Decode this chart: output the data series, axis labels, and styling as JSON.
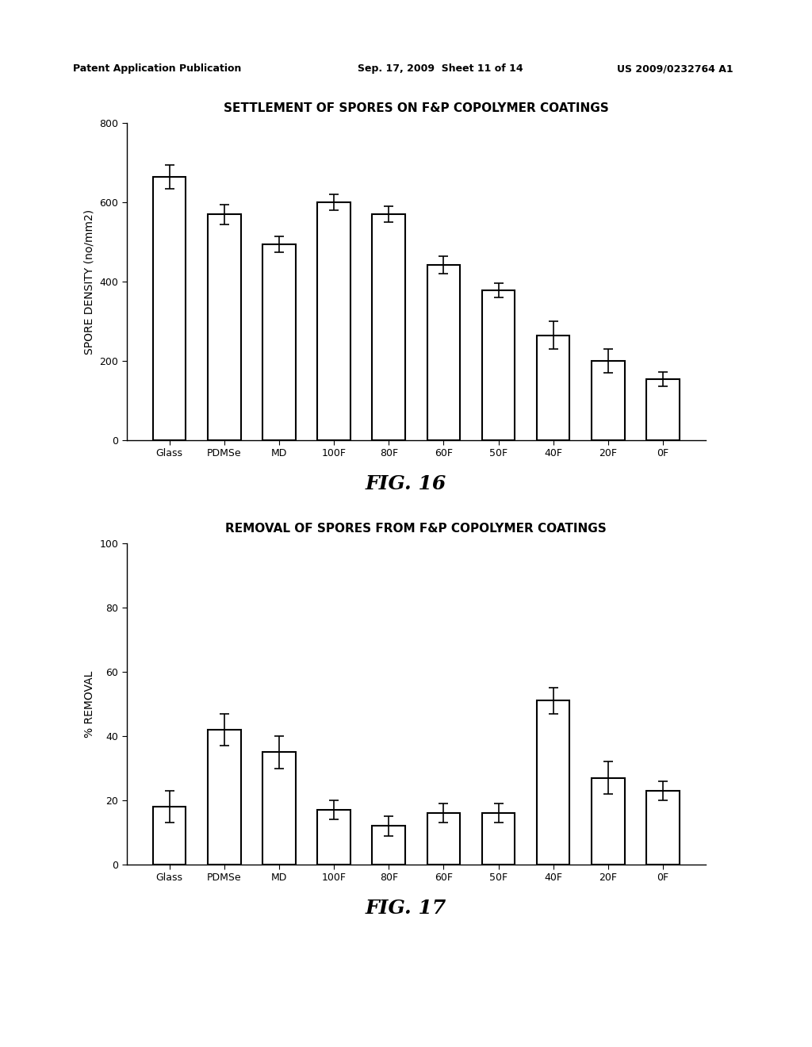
{
  "chart1": {
    "title": "SETTLEMENT OF SPORES ON F&P COPOLYMER COATINGS",
    "ylabel": "SPORE DENSITY (no/mm2)",
    "categories": [
      "Glass",
      "PDMSe",
      "MD",
      "100F",
      "80F",
      "60F",
      "50F",
      "40F",
      "20F",
      "0F"
    ],
    "values": [
      665,
      570,
      495,
      600,
      570,
      443,
      378,
      265,
      200,
      155
    ],
    "errors": [
      30,
      25,
      20,
      20,
      20,
      22,
      18,
      35,
      30,
      18
    ],
    "ylim": [
      0,
      800
    ],
    "yticks": [
      0,
      200,
      400,
      600,
      800
    ],
    "fig_label": "FIG. 16"
  },
  "chart2": {
    "title": "REMOVAL OF SPORES FROM F&P COPOLYMER COATINGS",
    "ylabel": "% REMOVAL",
    "categories": [
      "Glass",
      "PDMSe",
      "MD",
      "100F",
      "80F",
      "60F",
      "50F",
      "40F",
      "20F",
      "0F"
    ],
    "values": [
      18,
      42,
      35,
      17,
      12,
      16,
      16,
      51,
      27,
      23
    ],
    "errors": [
      5,
      5,
      5,
      3,
      3,
      3,
      3,
      4,
      5,
      3
    ],
    "ylim": [
      0,
      100
    ],
    "yticks": [
      0,
      20,
      40,
      60,
      80,
      100
    ],
    "fig_label": "FIG. 17"
  },
  "bar_color": "#ffffff",
  "bar_edgecolor": "#000000",
  "bar_linewidth": 1.5,
  "background_color": "#ffffff",
  "title_fontsize": 11,
  "label_fontsize": 10,
  "tick_fontsize": 9,
  "fig_label_fontsize": 18,
  "header_left": "Patent Application Publication",
  "header_mid": "Sep. 17, 2009  Sheet 11 of 14",
  "header_right": "US 2009/0232764 A1"
}
